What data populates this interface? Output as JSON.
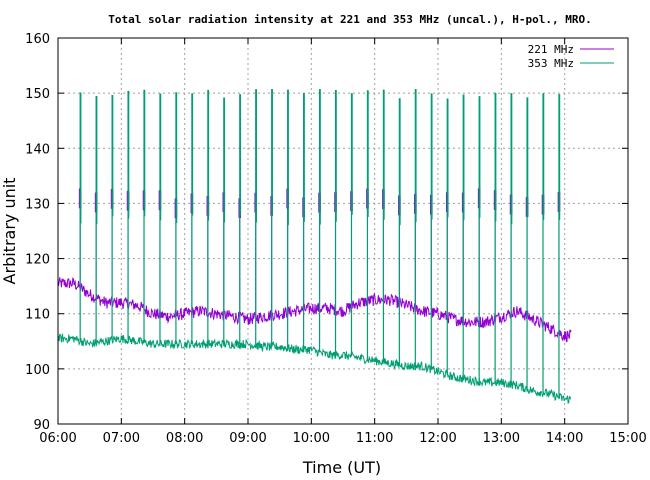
{
  "chart_data": {
    "type": "line",
    "title": "Total solar radiation intensity at 221 and 353 MHz (uncal.), H-pol., MRO.",
    "xlabel": "Time (UT)",
    "ylabel": "Arbitrary unit",
    "x_tick_labels": [
      "06:00",
      "07:00",
      "08:00",
      "09:00",
      "10:00",
      "11:00",
      "12:00",
      "13:00",
      "14:00",
      "15:00"
    ],
    "y_tick_labels": [
      "90",
      "100",
      "110",
      "120",
      "130",
      "140",
      "150",
      "160"
    ],
    "xlim_hours": [
      6,
      15
    ],
    "ylim": [
      90,
      160
    ],
    "grid": true,
    "legend_position": "top-right",
    "series": [
      {
        "name": "221 MHz",
        "color": "#9400d3",
        "baseline_start": 115.5,
        "baseline_end": 106,
        "spike_level": 130,
        "x_hours": [
          6.25,
          6.5,
          6.75,
          7.0,
          7.25,
          7.5,
          7.75,
          8.0,
          8.25,
          8.5,
          8.75,
          9.0,
          9.25,
          9.5,
          9.75,
          10.0,
          10.25,
          10.5,
          10.75,
          11.0,
          11.25,
          11.5,
          11.75,
          12.0,
          12.25,
          12.5,
          12.75,
          13.0,
          13.25,
          13.5,
          13.75,
          14.0
        ],
        "y": [
          115.5,
          113.5,
          112,
          112,
          111.5,
          110,
          109.5,
          110,
          110.5,
          110,
          109.5,
          109,
          109.5,
          110,
          110.5,
          111,
          111,
          110.5,
          112,
          112.5,
          112.5,
          111.5,
          110.5,
          110,
          109,
          108.5,
          108.5,
          109.5,
          110.5,
          109,
          107.5,
          106
        ]
      },
      {
        "name": "353 MHz",
        "color": "#009e73",
        "baseline_start": 105.5,
        "baseline_end": 94.5,
        "spike_level": 150,
        "x_hours": [
          6.25,
          6.5,
          6.75,
          7.0,
          7.25,
          7.5,
          7.75,
          8.0,
          8.25,
          8.5,
          8.75,
          9.0,
          9.25,
          9.5,
          9.75,
          10.0,
          10.25,
          10.5,
          10.75,
          11.0,
          11.25,
          11.5,
          11.75,
          12.0,
          12.25,
          12.5,
          12.75,
          13.0,
          13.25,
          13.5,
          13.75,
          14.0
        ],
        "y": [
          105.5,
          104.5,
          105,
          105.5,
          105,
          104.5,
          104.5,
          104.5,
          104.5,
          104.5,
          104.5,
          104.5,
          104,
          104,
          103.5,
          103.5,
          102.5,
          102.5,
          102,
          101.5,
          101,
          100.5,
          100.5,
          99.5,
          98.5,
          98,
          97.5,
          97.5,
          97,
          96,
          95.5,
          94.5
        ]
      }
    ]
  }
}
